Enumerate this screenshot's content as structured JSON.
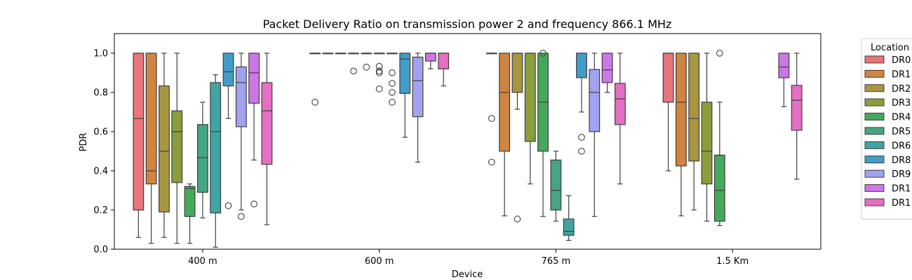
{
  "chart_data": {
    "type": "box",
    "title": "Packet Delivery Ratio on transmission power 2 and frequency 866.1 MHz",
    "xlabel": "Device",
    "ylabel": "PDR",
    "ylim": [
      0.0,
      1.1
    ],
    "yticks": [
      "0.0",
      "0.2",
      "0.4",
      "0.6",
      "0.8",
      "1.0"
    ],
    "categories": [
      "400 m",
      "600 m",
      "765 m",
      "1.5 Km"
    ],
    "legend": {
      "title": "Location",
      "placement": "outside-right",
      "entries": [
        "DR0",
        "DR1",
        "DR2",
        "DR3",
        "DR4",
        "DR5",
        "DR6",
        "DR8",
        "DR9",
        "DR1",
        "DR1"
      ]
    },
    "series": [
      {
        "name": "DR0",
        "color": "#e8747c",
        "boxes": [
          {
            "q1": 0.2,
            "median": 0.667,
            "q3": 1.0,
            "wlo": 0.06,
            "whi": 1.0,
            "outliers": []
          },
          {
            "q1": 1.0,
            "median": 1.0,
            "q3": 1.0,
            "wlo": 1.0,
            "whi": 1.0,
            "outliers": [
              0.75
            ]
          },
          {
            "q1": 1.0,
            "median": 1.0,
            "q3": 1.0,
            "wlo": 1.0,
            "whi": 1.0,
            "outliers": [
              0.667,
              0.444
            ]
          },
          {
            "q1": 0.75,
            "median": 1.0,
            "q3": 1.0,
            "wlo": 0.4,
            "whi": 1.0,
            "outliers": []
          }
        ]
      },
      {
        "name": "DR1",
        "color": "#d0843f",
        "boxes": [
          {
            "q1": 0.333,
            "median": 0.4,
            "q3": 1.0,
            "wlo": 0.03,
            "whi": 1.0,
            "outliers": []
          },
          {
            "q1": 1.0,
            "median": 1.0,
            "q3": 1.0,
            "wlo": 1.0,
            "whi": 1.0,
            "outliers": []
          },
          {
            "q1": 0.5,
            "median": 0.8,
            "q3": 1.0,
            "wlo": 0.17,
            "whi": 1.0,
            "outliers": []
          },
          {
            "q1": 0.425,
            "median": 0.75,
            "q3": 1.0,
            "wlo": 0.17,
            "whi": 1.0,
            "outliers": []
          }
        ]
      },
      {
        "name": "DR2",
        "color": "#a89640",
        "boxes": [
          {
            "q1": 0.19,
            "median": 0.5,
            "q3": 0.833,
            "wlo": 0.06,
            "whi": 1.0,
            "outliers": []
          },
          {
            "q1": 1.0,
            "median": 1.0,
            "q3": 1.0,
            "wlo": 1.0,
            "whi": 1.0,
            "outliers": []
          },
          {
            "q1": 0.8,
            "median": 1.0,
            "q3": 1.0,
            "wlo": 0.714,
            "whi": 1.0,
            "outliers": [
              0.154
            ]
          },
          {
            "q1": 0.45,
            "median": 0.667,
            "q3": 1.0,
            "wlo": 0.2,
            "whi": 1.0,
            "outliers": []
          }
        ]
      },
      {
        "name": "DR3",
        "color": "#8a9e3e",
        "boxes": [
          {
            "q1": 0.34,
            "median": 0.6,
            "q3": 0.706,
            "wlo": 0.03,
            "whi": 1.0,
            "outliers": []
          },
          {
            "q1": 1.0,
            "median": 1.0,
            "q3": 1.0,
            "wlo": 1.0,
            "whi": 1.0,
            "outliers": [
              0.909
            ]
          },
          {
            "q1": 0.55,
            "median": 1.0,
            "q3": 1.0,
            "wlo": 0.333,
            "whi": 1.0,
            "outliers": []
          },
          {
            "q1": 0.333,
            "median": 0.5,
            "q3": 0.75,
            "wlo": 0.143,
            "whi": 1.0,
            "outliers": []
          }
        ]
      },
      {
        "name": "DR4",
        "color": "#44a95a",
        "boxes": [
          {
            "q1": 0.167,
            "median": 0.31,
            "q3": 0.32,
            "wlo": 0.03,
            "whi": 0.333,
            "outliers": []
          },
          {
            "q1": 1.0,
            "median": 1.0,
            "q3": 1.0,
            "wlo": 1.0,
            "whi": 1.0,
            "outliers": [
              0.929
            ]
          },
          {
            "q1": 0.5,
            "median": 0.75,
            "q3": 1.0,
            "wlo": 0.167,
            "whi": 1.0,
            "outliers": [
              1.0
            ]
          },
          {
            "q1": 0.143,
            "median": 0.3,
            "q3": 0.48,
            "wlo": 0.12,
            "whi": 0.75,
            "outliers": [
              1.0
            ]
          }
        ]
      },
      {
        "name": "DR5",
        "color": "#45a484",
        "boxes": [
          {
            "q1": 0.29,
            "median": 0.467,
            "q3": 0.636,
            "wlo": 0.16,
            "whi": 0.75,
            "outliers": []
          },
          {
            "q1": 1.0,
            "median": 1.0,
            "q3": 1.0,
            "wlo": 1.0,
            "whi": 1.0,
            "outliers": [
              0.933,
              0.909,
              0.9,
              0.818
            ]
          },
          {
            "q1": 0.2,
            "median": 0.3,
            "q3": 0.455,
            "wlo": 0.143,
            "whi": 0.5,
            "outliers": []
          }
        ]
      },
      {
        "name": "DR6",
        "color": "#42a3a3",
        "boxes": [
          {
            "q1": 0.185,
            "median": 0.6,
            "q3": 0.85,
            "wlo": 0.01,
            "whi": 0.89,
            "outliers": []
          },
          {
            "q1": 1.0,
            "median": 1.0,
            "q3": 1.0,
            "wlo": 1.0,
            "whi": 1.0,
            "outliers": [
              0.9,
              0.846,
              0.8,
              0.75
            ]
          },
          {
            "q1": 0.071,
            "median": 0.091,
            "q3": 0.154,
            "wlo": 0.045,
            "whi": 0.273,
            "outliers": []
          }
        ]
      },
      {
        "name": "DR8",
        "color": "#439cc8",
        "boxes": [
          {
            "q1": 0.833,
            "median": 0.905,
            "q3": 1.0,
            "wlo": 0.667,
            "whi": 1.0,
            "outliers": [
              0.222
            ]
          },
          {
            "q1": 0.795,
            "median": 0.97,
            "q3": 1.0,
            "wlo": 0.571,
            "whi": 1.0,
            "outliers": []
          },
          {
            "q1": 0.875,
            "median": 1.0,
            "q3": 1.0,
            "wlo": 0.7,
            "whi": 1.0,
            "outliers": [
              0.571,
              0.5
            ]
          }
        ]
      },
      {
        "name": "DR9",
        "color": "#a2a3ee",
        "boxes": [
          {
            "q1": 0.625,
            "median": 0.85,
            "q3": 0.93,
            "wlo": 0.2,
            "whi": 1.0,
            "outliers": [
              0.167
            ]
          },
          {
            "q1": 0.676,
            "median": 0.86,
            "q3": 0.98,
            "wlo": 0.444,
            "whi": 1.0,
            "outliers": []
          },
          {
            "q1": 0.6,
            "median": 0.8,
            "q3": 0.917,
            "wlo": 0.167,
            "whi": 1.0,
            "outliers": []
          }
        ]
      },
      {
        "name": "DR1",
        "color": "#cc77e6",
        "boxes": [
          {
            "q1": 0.745,
            "median": 0.9,
            "q3": 1.0,
            "wlo": 0.455,
            "whi": 1.0,
            "outliers": [
              0.231
            ]
          },
          {
            "q1": 0.96,
            "median": 1.0,
            "q3": 1.0,
            "wlo": 0.92,
            "whi": 1.0,
            "outliers": []
          },
          {
            "q1": 0.85,
            "median": 0.915,
            "q3": 1.0,
            "wlo": 0.8,
            "whi": 1.0,
            "outliers": []
          },
          {
            "q1": 0.875,
            "median": 0.93,
            "q3": 1.0,
            "wlo": 0.727,
            "whi": 1.0,
            "outliers": []
          }
        ]
      },
      {
        "name": "DR1",
        "color": "#e46fc4",
        "boxes": [
          {
            "q1": 0.433,
            "median": 0.706,
            "q3": 0.85,
            "wlo": 0.125,
            "whi": 1.0,
            "outliers": []
          },
          {
            "q1": 0.92,
            "median": 1.0,
            "q3": 1.0,
            "wlo": 0.833,
            "whi": 1.0,
            "outliers": []
          },
          {
            "q1": 0.636,
            "median": 0.767,
            "q3": 0.846,
            "wlo": 0.333,
            "whi": 1.0,
            "outliers": []
          },
          {
            "q1": 0.607,
            "median": 0.76,
            "q3": 0.836,
            "wlo": 0.357,
            "whi": 1.0,
            "outliers": []
          }
        ]
      }
    ]
  }
}
